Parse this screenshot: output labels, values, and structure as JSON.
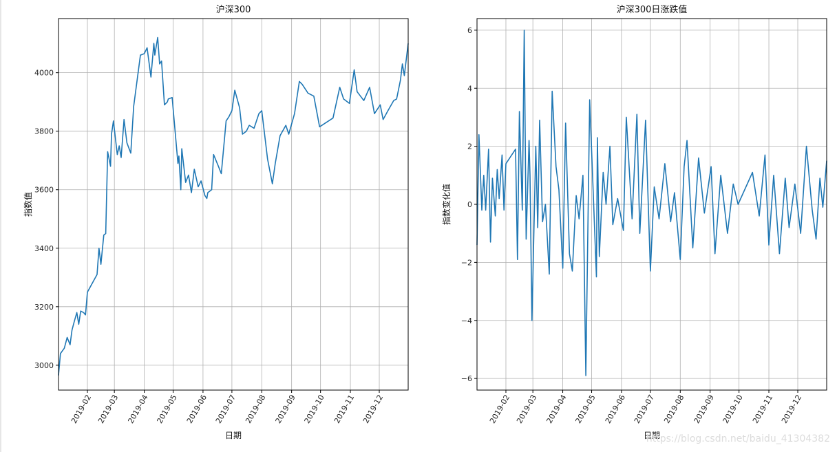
{
  "chart_data": [
    {
      "type": "line",
      "title": "沪深300",
      "xlabel": "日期",
      "ylabel": "指数值",
      "x_tick_labels": [
        "2019-02",
        "2019-03",
        "2019-04",
        "2019-05",
        "2019-06",
        "2019-07",
        "2019-08",
        "2019-09",
        "2019-10",
        "2019-11",
        "2019-12"
      ],
      "y_tick_labels": [
        "3000",
        "3200",
        "3400",
        "3600",
        "3800",
        "4000"
      ],
      "ylim": [
        2915,
        4185
      ],
      "xlim": [
        "2019-01-02",
        "2019-12-31"
      ],
      "grid": true,
      "series": [
        {
          "color": "#1f77b4",
          "x": [
            "2019-01-02",
            "2019-01-04",
            "2019-01-08",
            "2019-01-11",
            "2019-01-14",
            "2019-01-16",
            "2019-01-18",
            "2019-01-21",
            "2019-01-23",
            "2019-01-25",
            "2019-01-28",
            "2019-01-30",
            "2019-02-01",
            "2019-02-11",
            "2019-02-13",
            "2019-02-15",
            "2019-02-18",
            "2019-02-20",
            "2019-02-22",
            "2019-02-25",
            "2019-02-26",
            "2019-02-28",
            "2019-03-04",
            "2019-03-06",
            "2019-03-08",
            "2019-03-11",
            "2019-03-14",
            "2019-03-18",
            "2019-03-21",
            "2019-03-25",
            "2019-03-28",
            "2019-04-01",
            "2019-04-04",
            "2019-04-08",
            "2019-04-11",
            "2019-04-12",
            "2019-04-15",
            "2019-04-17",
            "2019-04-19",
            "2019-04-22",
            "2019-04-25",
            "2019-04-26",
            "2019-04-30",
            "2019-05-06",
            "2019-05-07",
            "2019-05-09",
            "2019-05-10",
            "2019-05-14",
            "2019-05-17",
            "2019-05-20",
            "2019-05-23",
            "2019-05-27",
            "2019-05-30",
            "2019-06-03",
            "2019-06-05",
            "2019-06-06",
            "2019-06-10",
            "2019-06-12",
            "2019-06-17",
            "2019-06-20",
            "2019-06-25",
            "2019-06-28",
            "2019-07-01",
            "2019-07-04",
            "2019-07-09",
            "2019-07-12",
            "2019-07-16",
            "2019-07-19",
            "2019-07-24",
            "2019-07-29",
            "2019-08-01",
            "2019-08-05",
            "2019-08-07",
            "2019-08-12",
            "2019-08-15",
            "2019-08-20",
            "2019-08-26",
            "2019-08-29",
            "2019-09-04",
            "2019-09-09",
            "2019-09-12",
            "2019-09-18",
            "2019-09-24",
            "2019-09-30",
            "2019-10-14",
            "2019-10-21",
            "2019-10-25",
            "2019-10-31",
            "2019-11-05",
            "2019-11-08",
            "2019-11-15",
            "2019-11-21",
            "2019-11-26",
            "2019-12-02",
            "2019-12-05",
            "2019-12-10",
            "2019-12-16",
            "2019-12-19",
            "2019-12-23",
            "2019-12-25",
            "2019-12-27",
            "2019-12-31"
          ],
          "values": [
            2965,
            3040,
            3058,
            3095,
            3070,
            3120,
            3145,
            3180,
            3140,
            3185,
            3180,
            3172,
            3250,
            3310,
            3400,
            3345,
            3445,
            3450,
            3730,
            3680,
            3790,
            3835,
            3720,
            3750,
            3710,
            3840,
            3760,
            3725,
            3885,
            3985,
            4060,
            4065,
            4085,
            3985,
            4100,
            4060,
            4120,
            4030,
            4040,
            3890,
            3900,
            3910,
            3915,
            3690,
            3715,
            3600,
            3740,
            3625,
            3650,
            3590,
            3670,
            3610,
            3630,
            3580,
            3570,
            3590,
            3600,
            3720,
            3680,
            3655,
            3835,
            3850,
            3870,
            3940,
            3880,
            3790,
            3800,
            3820,
            3810,
            3860,
            3870,
            3760,
            3705,
            3620,
            3690,
            3785,
            3820,
            3790,
            3860,
            3970,
            3960,
            3930,
            3920,
            3815,
            3845,
            3950,
            3910,
            3895,
            4010,
            3935,
            3905,
            3950,
            3860,
            3890,
            3840,
            3870,
            3905,
            3910,
            3975,
            4030,
            3990,
            4100
          ]
        }
      ]
    },
    {
      "type": "line",
      "title": "沪深300日涨跌值",
      "xlabel": "日期",
      "ylabel": "指数变化值",
      "x_tick_labels": [
        "2019-02",
        "2019-03",
        "2019-04",
        "2019-05",
        "2019-06",
        "2019-07",
        "2019-08",
        "2019-09",
        "2019-10",
        "2019-11",
        "2019-12"
      ],
      "y_tick_labels": [
        "−6",
        "−4",
        "−2",
        "0",
        "2",
        "4",
        "6"
      ],
      "ylim": [
        -6.4,
        6.4
      ],
      "xlim": [
        "2019-01-02",
        "2019-12-31"
      ],
      "grid": true,
      "series": [
        {
          "color": "#1f77b4",
          "x": [
            "2019-01-02",
            "2019-01-04",
            "2019-01-07",
            "2019-01-09",
            "2019-01-11",
            "2019-01-14",
            "2019-01-16",
            "2019-01-18",
            "2019-01-21",
            "2019-01-23",
            "2019-01-25",
            "2019-01-28",
            "2019-01-30",
            "2019-02-01",
            "2019-02-11",
            "2019-02-13",
            "2019-02-15",
            "2019-02-18",
            "2019-02-20",
            "2019-02-22",
            "2019-02-25",
            "2019-02-26",
            "2019-02-28",
            "2019-03-04",
            "2019-03-06",
            "2019-03-08",
            "2019-03-11",
            "2019-03-14",
            "2019-03-18",
            "2019-03-21",
            "2019-03-25",
            "2019-03-28",
            "2019-04-01",
            "2019-04-04",
            "2019-04-08",
            "2019-04-11",
            "2019-04-15",
            "2019-04-18",
            "2019-04-22",
            "2019-04-25",
            "2019-04-29",
            "2019-05-06",
            "2019-05-07",
            "2019-05-09",
            "2019-05-13",
            "2019-05-16",
            "2019-05-20",
            "2019-05-23",
            "2019-05-28",
            "2019-06-03",
            "2019-06-06",
            "2019-06-12",
            "2019-06-17",
            "2019-06-20",
            "2019-06-26",
            "2019-07-01",
            "2019-07-05",
            "2019-07-10",
            "2019-07-16",
            "2019-07-22",
            "2019-07-26",
            "2019-08-01",
            "2019-08-05",
            "2019-08-08",
            "2019-08-14",
            "2019-08-20",
            "2019-08-26",
            "2019-09-02",
            "2019-09-06",
            "2019-09-12",
            "2019-09-19",
            "2019-09-25",
            "2019-09-30",
            "2019-10-15",
            "2019-10-22",
            "2019-10-28",
            "2019-11-01",
            "2019-11-06",
            "2019-11-12",
            "2019-11-18",
            "2019-11-22",
            "2019-11-28",
            "2019-12-04",
            "2019-12-10",
            "2019-12-16",
            "2019-12-20",
            "2019-12-24",
            "2019-12-27",
            "2019-12-31"
          ],
          "values": [
            -1.4,
            2.4,
            -0.2,
            1.0,
            -0.2,
            1.9,
            -1.3,
            0.9,
            -0.4,
            1.2,
            0.2,
            1.7,
            -0.2,
            1.4,
            1.9,
            -1.9,
            3.2,
            -0.2,
            6.0,
            -1.2,
            2.2,
            1.0,
            -4.0,
            2.0,
            -0.8,
            2.9,
            -0.6,
            0.0,
            -2.4,
            3.9,
            1.3,
            0.5,
            -2.2,
            2.8,
            -1.7,
            -2.3,
            0.3,
            -0.5,
            1.0,
            -5.9,
            3.6,
            -2.5,
            2.3,
            -1.8,
            1.1,
            0.0,
            2.0,
            -0.7,
            0.2,
            -0.9,
            3.0,
            -0.5,
            3.1,
            -1.0,
            2.9,
            -2.3,
            0.6,
            -0.5,
            1.4,
            -0.6,
            0.4,
            -1.9,
            1.3,
            2.2,
            -1.5,
            1.6,
            -0.3,
            1.3,
            -1.7,
            1.0,
            -1.0,
            0.7,
            0.0,
            1.1,
            -0.4,
            1.7,
            -1.4,
            1.0,
            -1.7,
            0.9,
            -0.8,
            0.7,
            -1.0,
            2.0,
            -0.2,
            -1.2,
            0.9,
            -0.1,
            1.5
          ]
        }
      ]
    }
  ],
  "watermark": "https://blog.csdn.net/baidu_41304382"
}
